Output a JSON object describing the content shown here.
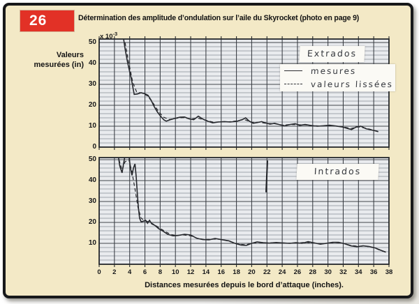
{
  "page": {
    "badge_number": "26",
    "title": "Détermination des amplitude d’ondulation sur l’aile du Skyrocket (photo en page 9)"
  },
  "axis": {
    "y_axis_label_line1": "Valeurs",
    "y_axis_label_line2": "mesurées (in)",
    "scale_prefix": "x 10",
    "scale_exponent": "-3",
    "x_axis_title": "Distances mesurées depuis le bord d’attaque (inches).",
    "x_ticks": [
      0,
      2,
      4,
      6,
      8,
      10,
      12,
      14,
      16,
      18,
      20,
      22,
      24,
      26,
      28,
      30,
      32,
      34,
      36,
      38
    ]
  },
  "colors": {
    "badge_red": "#e23126",
    "page_cream": "#f3e9c6",
    "graph_paper": "#e9ebee",
    "grid_major": "#41454b",
    "grid_minor": "#878d96",
    "ink": "#26282d"
  },
  "chart_data": [
    {
      "id": "extrados",
      "type": "line",
      "title": "Extrados",
      "xlabel": "Distances mesurées depuis le bord d’attaque (inches).",
      "ylabel": "Valeurs mesurées (in) x 10^-3",
      "xlim": [
        0,
        38
      ],
      "ylim": [
        0,
        51.7
      ],
      "grid": true,
      "legend_position": "top-right",
      "y_ticks": [
        50,
        40,
        30,
        20,
        10,
        0
      ],
      "series": [
        {
          "name": "mesures",
          "style": "solid",
          "points": [
            [
              3.2,
              52
            ],
            [
              3.4,
              47
            ],
            [
              3.7,
              41
            ],
            [
              4.0,
              36
            ],
            [
              4.2,
              33
            ],
            [
              4.45,
              28
            ],
            [
              4.6,
              25.2
            ],
            [
              5.0,
              25.4
            ],
            [
              5.5,
              26
            ],
            [
              6.0,
              25.5
            ],
            [
              6.4,
              24.8
            ],
            [
              6.8,
              22.5
            ],
            [
              7.2,
              19.5
            ],
            [
              7.6,
              17
            ],
            [
              8.0,
              15
            ],
            [
              8.5,
              13
            ],
            [
              8.8,
              12.4
            ],
            [
              9.3,
              13.1
            ],
            [
              9.9,
              13.7
            ],
            [
              10.6,
              14.3
            ],
            [
              11.2,
              14.4
            ],
            [
              11.8,
              13.5
            ],
            [
              12.4,
              13.1
            ],
            [
              13.0,
              14.8
            ],
            [
              13.6,
              13.4
            ],
            [
              14.3,
              12.3
            ],
            [
              14.9,
              11.6
            ],
            [
              15.6,
              12
            ],
            [
              16.4,
              12.2
            ],
            [
              17.2,
              12
            ],
            [
              18.1,
              12.4
            ],
            [
              18.8,
              13.2
            ],
            [
              19.2,
              14
            ],
            [
              19.7,
              12.4
            ],
            [
              20.2,
              11.4
            ],
            [
              20.8,
              11.8
            ],
            [
              21.3,
              12.2
            ],
            [
              21.9,
              11.5
            ],
            [
              22.4,
              11
            ],
            [
              23.0,
              11.4
            ],
            [
              23.6,
              10.8
            ],
            [
              24.3,
              10.2
            ],
            [
              25.0,
              10.8
            ],
            [
              25.7,
              11.2
            ],
            [
              26.3,
              10.4
            ],
            [
              27.0,
              10.8
            ],
            [
              27.8,
              10.3
            ],
            [
              28.6,
              10
            ],
            [
              29.4,
              10.2
            ],
            [
              30.2,
              10.5
            ],
            [
              31.0,
              10.1
            ],
            [
              31.8,
              9.7
            ],
            [
              32.6,
              8.9
            ],
            [
              33.1,
              8.4
            ],
            [
              33.7,
              9.6
            ],
            [
              34.3,
              10
            ],
            [
              35.0,
              8.8
            ],
            [
              35.7,
              8.2
            ],
            [
              36.2,
              7.8
            ],
            [
              36.6,
              7.4
            ]
          ]
        },
        {
          "name": "valeurs lissées",
          "style": "dashed",
          "points": [
            [
              3.4,
              50
            ],
            [
              3.9,
              40
            ],
            [
              4.4,
              31
            ],
            [
              4.9,
              26.5
            ],
            [
              5.6,
              25.8
            ],
            [
              6.3,
              24.6
            ],
            [
              7.0,
              21.5
            ],
            [
              7.7,
              17.5
            ],
            [
              8.4,
              14.4
            ],
            [
              9.2,
              13.2
            ],
            [
              10.1,
              13.8
            ],
            [
              11.0,
              14.1
            ],
            [
              12.0,
              13.5
            ],
            [
              13.0,
              13.8
            ],
            [
              14.0,
              12.8
            ],
            [
              15.0,
              11.9
            ],
            [
              16.0,
              12.1
            ],
            [
              17.0,
              12.1
            ],
            [
              18.0,
              12.5
            ],
            [
              19.0,
              13.2
            ],
            [
              20.0,
              11.9
            ],
            [
              21.0,
              11.9
            ],
            [
              22.0,
              11.3
            ],
            [
              23.0,
              11.2
            ],
            [
              24.0,
              10.5
            ],
            [
              25.0,
              10.8
            ],
            [
              26.0,
              10.7
            ],
            [
              27.0,
              10.6
            ],
            [
              28.0,
              10.3
            ],
            [
              29.0,
              10.1
            ],
            [
              30.0,
              10.3
            ],
            [
              31.0,
              10.1
            ],
            [
              32.0,
              9.7
            ],
            [
              33.0,
              8.9
            ],
            [
              34.0,
              9.7
            ],
            [
              35.0,
              9.0
            ],
            [
              36.0,
              8.1
            ],
            [
              36.6,
              7.5
            ]
          ]
        }
      ]
    },
    {
      "id": "intrados",
      "type": "line",
      "title": "Intrados",
      "xlabel": "Distances mesurées depuis le bord d’attaque (inches).",
      "ylabel": "Valeurs mesurées (in) x 10^-3",
      "xlim": [
        0,
        38
      ],
      "ylim": [
        0,
        51
      ],
      "grid": true,
      "legend_position": "none",
      "y_ticks": [
        50,
        40,
        30,
        20,
        10
      ],
      "series": [
        {
          "name": "mesures",
          "style": "solid",
          "points": [
            [
              2.5,
              52
            ],
            [
              2.7,
              47
            ],
            [
              3.0,
              43.7
            ],
            [
              3.2,
              48
            ],
            [
              3.4,
              52
            ],
            [
              3.9,
              52
            ],
            [
              4.1,
              46
            ],
            [
              4.3,
              42.5
            ],
            [
              4.5,
              46
            ],
            [
              4.7,
              48
            ],
            [
              4.85,
              42
            ],
            [
              5.0,
              34
            ],
            [
              5.15,
              27
            ],
            [
              5.3,
              22
            ],
            [
              5.5,
              20.3
            ],
            [
              5.8,
              20.6
            ],
            [
              6.1,
              21
            ],
            [
              6.35,
              19.6
            ],
            [
              6.6,
              21
            ],
            [
              6.9,
              19.3
            ],
            [
              7.3,
              18.6
            ],
            [
              7.8,
              17
            ],
            [
              8.3,
              16
            ],
            [
              9.0,
              14.3
            ],
            [
              9.7,
              13.6
            ],
            [
              10.4,
              13.8
            ],
            [
              11.2,
              14.3
            ],
            [
              12.0,
              14
            ],
            [
              12.8,
              12.4
            ],
            [
              13.6,
              11.8
            ],
            [
              14.4,
              11.7
            ],
            [
              15.2,
              12.3
            ],
            [
              16.0,
              11.8
            ],
            [
              17.0,
              11.2
            ],
            [
              17.8,
              10
            ],
            [
              18.6,
              9.2
            ],
            [
              19.3,
              9
            ],
            [
              20.0,
              10
            ],
            [
              20.7,
              10.7
            ],
            [
              21.5,
              10.3
            ],
            [
              22.3,
              10.1
            ],
            [
              23.2,
              10.4
            ],
            [
              24.0,
              10.2
            ],
            [
              25.0,
              10
            ],
            [
              25.8,
              10.3
            ],
            [
              26.6,
              10
            ],
            [
              27.4,
              10.8
            ],
            [
              28.2,
              10.2
            ],
            [
              29.0,
              9.6
            ],
            [
              29.8,
              10
            ],
            [
              30.6,
              10.5
            ],
            [
              31.4,
              10.5
            ],
            [
              32.2,
              9.8
            ],
            [
              33.0,
              8.8
            ],
            [
              33.8,
              8.4
            ],
            [
              34.6,
              8.8
            ],
            [
              35.4,
              8.5
            ],
            [
              36.2,
              7.8
            ],
            [
              37.0,
              6.6
            ],
            [
              37.6,
              5.8
            ]
          ]
        },
        {
          "name": "valeurs lissées",
          "style": "dashed",
          "points": [
            [
              2.6,
              50
            ],
            [
              3.0,
              45
            ],
            [
              3.4,
              49
            ],
            [
              3.9,
              50
            ],
            [
              4.3,
              44
            ],
            [
              4.7,
              36
            ],
            [
              5.1,
              27
            ],
            [
              5.5,
              22
            ],
            [
              6.0,
              20.8
            ],
            [
              6.6,
              20.2
            ],
            [
              7.2,
              19
            ],
            [
              7.9,
              17.4
            ],
            [
              8.6,
              15.8
            ],
            [
              9.4,
              14.2
            ],
            [
              10.2,
              13.8
            ],
            [
              11.1,
              14
            ],
            [
              12.0,
              13.6
            ],
            [
              12.9,
              12.4
            ],
            [
              13.8,
              11.9
            ],
            [
              14.7,
              12
            ],
            [
              15.6,
              12
            ],
            [
              16.5,
              11.5
            ],
            [
              17.4,
              10.6
            ],
            [
              18.3,
              9.6
            ],
            [
              19.2,
              9.3
            ],
            [
              20.1,
              10
            ],
            [
              21.0,
              10.5
            ],
            [
              22.0,
              10.2
            ],
            [
              23.0,
              10.3
            ],
            [
              24.0,
              10.2
            ],
            [
              25.0,
              10.1
            ],
            [
              26.0,
              10.1
            ],
            [
              27.0,
              10.5
            ],
            [
              28.0,
              10.3
            ],
            [
              29.0,
              9.8
            ],
            [
              30.0,
              10.1
            ],
            [
              31.0,
              10.5
            ],
            [
              32.0,
              10
            ],
            [
              33.0,
              9
            ],
            [
              34.0,
              8.6
            ],
            [
              35.0,
              8.6
            ],
            [
              36.0,
              7.9
            ],
            [
              37.0,
              6.5
            ],
            [
              37.5,
              5.8
            ]
          ]
        }
      ]
    }
  ]
}
